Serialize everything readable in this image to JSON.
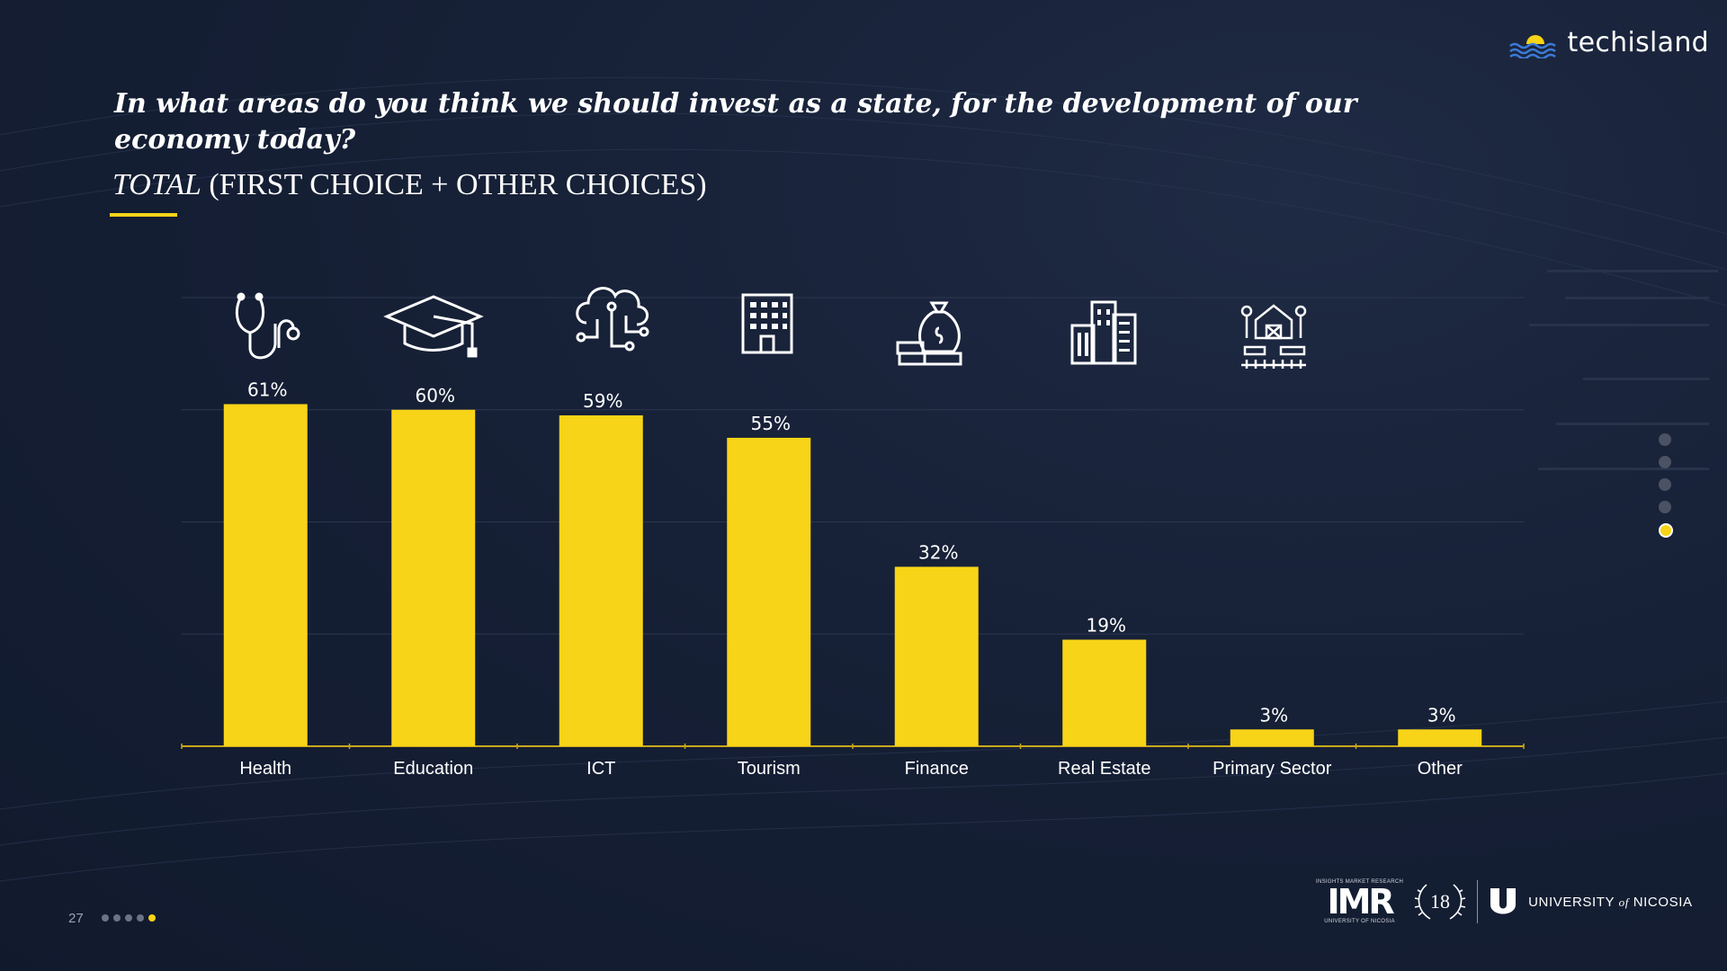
{
  "brand": {
    "name": "techisland",
    "accent": "#f7d417",
    "background": "#162036"
  },
  "slide": {
    "title": "In what areas do you think we should invest as a state, for the development of our economy today?",
    "subtitle_italic": "TOTAL",
    "subtitle_rest": " (FIRST CHOICE + OTHER CHOICES)",
    "page_number": "27",
    "page_dots": 5,
    "active_dot": 5
  },
  "footer": {
    "imr_small_top": "INSIGHTS MARKET RESEARCH",
    "imr_label": "IMR",
    "imr_small_bottom": "UNIVERSITY OF NICOSIA",
    "anniversary": "18",
    "university_pre": "UNIVERSITY ",
    "university_of": "of",
    "university_post": " NICOSIA"
  },
  "chart_data": {
    "type": "bar",
    "categories": [
      "Health",
      "Education",
      "ICT",
      "Tourism",
      "Finance",
      "Real Estate",
      "Primary Sector",
      "Other"
    ],
    "values": [
      61,
      60,
      59,
      55,
      32,
      19,
      3,
      3
    ],
    "value_labels": [
      "61%",
      "60%",
      "59%",
      "55%",
      "32%",
      "19%",
      "3%",
      "3%"
    ],
    "category_icons": [
      "stethoscope-icon",
      "graduation-cap-icon",
      "cloud-circuit-icon",
      "hotel-building-icon",
      "money-bag-icon",
      "office-buildings-icon",
      "farm-icon",
      null
    ],
    "ylim": [
      0,
      80
    ],
    "grid": true,
    "bar_color": "#f7d417"
  }
}
